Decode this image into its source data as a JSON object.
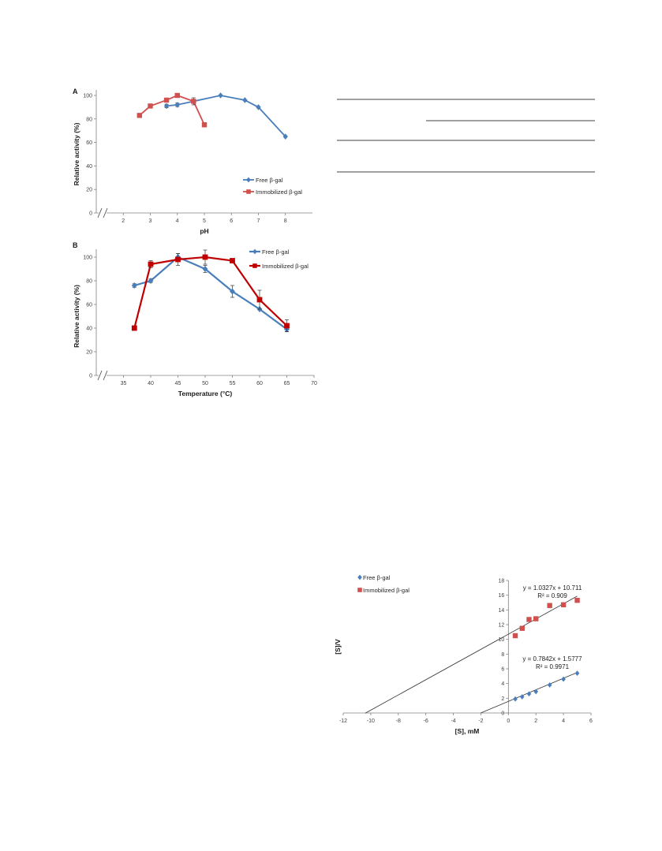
{
  "colors": {
    "free": "#4a7ebb",
    "immobilized_a": "#d0504e",
    "immobilized_b": "#c00000",
    "fit_line": "#333333",
    "axis": "#808080"
  },
  "table_rules": true,
  "chart_data": [
    {
      "id": "A",
      "type": "line",
      "panel_label": "A",
      "xlabel": "pH",
      "ylabel": "Relative activity (%)",
      "xlim": [
        1,
        9
      ],
      "ylim": [
        0,
        100
      ],
      "xticks": [
        2,
        3,
        4,
        5,
        6,
        7,
        8
      ],
      "yticks": [
        0,
        20,
        40,
        60,
        80,
        100
      ],
      "axis_break": true,
      "legend_position": "bottom-right",
      "series": [
        {
          "name": "Free β-gal",
          "marker": "diamond",
          "color": "#4a7ebb",
          "x": [
            3.6,
            4.0,
            4.6,
            5.6,
            6.5,
            7.0,
            8.0
          ],
          "y": [
            91,
            92,
            95,
            100,
            96,
            90,
            65
          ],
          "err": [
            1.5,
            1.5,
            1.5,
            0,
            0,
            0,
            0
          ]
        },
        {
          "name": "Immobilized β-gal",
          "marker": "square",
          "color": "#d0504e",
          "x": [
            2.6,
            3.0,
            3.6,
            4.0,
            4.6,
            5.0
          ],
          "y": [
            83,
            91,
            96,
            100,
            95,
            75
          ],
          "err": [
            0,
            0,
            0,
            0,
            3,
            0
          ]
        }
      ]
    },
    {
      "id": "B",
      "type": "line",
      "panel_label": "B",
      "xlabel": "Temperature (°C)",
      "ylabel": "Relative activity (%)",
      "xlim": [
        30,
        70
      ],
      "ylim": [
        0,
        100
      ],
      "xticks": [
        35,
        40,
        45,
        50,
        55,
        60,
        65,
        70
      ],
      "yticks": [
        0,
        20,
        40,
        60,
        80,
        100
      ],
      "axis_break": true,
      "legend_position": "top-right",
      "series": [
        {
          "name": "Free β-gal",
          "marker": "diamond",
          "color": "#4a7ebb",
          "x": [
            37,
            40,
            45,
            50,
            55,
            60,
            65
          ],
          "y": [
            76,
            80,
            100,
            90,
            71,
            56,
            39
          ],
          "err": [
            1.5,
            1.5,
            3,
            3,
            5,
            0,
            2
          ]
        },
        {
          "name": "Immobilized β-gal",
          "marker": "square",
          "color": "#c00000",
          "x": [
            37,
            40,
            45,
            50,
            55,
            60,
            65
          ],
          "y": [
            40,
            94,
            98,
            100,
            97,
            64,
            42
          ],
          "err": [
            0,
            3,
            5,
            6,
            0,
            8,
            5
          ]
        }
      ]
    },
    {
      "id": "C",
      "type": "scatter",
      "xlabel": "[S], mM",
      "ylabel": "[S]/V",
      "xlim": [
        -12,
        6
      ],
      "ylim": [
        0,
        18
      ],
      "xticks": [
        -12,
        -10,
        -8,
        -6,
        -4,
        -2,
        0,
        2,
        4,
        6
      ],
      "yticks": [
        0,
        2,
        4,
        6,
        8,
        10,
        12,
        14,
        16,
        18
      ],
      "legend_position": "top-left",
      "series": [
        {
          "name": "Free β-gal",
          "marker": "diamond",
          "color": "#4a7ebb",
          "x": [
            0.5,
            1.0,
            1.5,
            2.0,
            3.0,
            4.0,
            5.0
          ],
          "y": [
            1.9,
            2.2,
            2.6,
            2.9,
            3.8,
            4.6,
            5.4
          ],
          "fit": {
            "slope": 0.7842,
            "intercept": 1.5777,
            "x_start": -2.0,
            "equation": "y = 0.7842x + 1.5777",
            "r2": "R² = 0.9971"
          }
        },
        {
          "name": "Immobilized β-gal",
          "marker": "square",
          "color": "#d0504e",
          "x": [
            0.5,
            1.0,
            1.5,
            2.0,
            3.0,
            4.0,
            5.0
          ],
          "y": [
            10.5,
            11.5,
            12.7,
            12.8,
            14.6,
            14.7,
            15.3
          ],
          "fit": {
            "slope": 1.0327,
            "intercept": 10.711,
            "x_start": -10.4,
            "equation": "y = 1.0327x + 10.711",
            "r2": "R² = 0.909"
          }
        }
      ]
    }
  ]
}
